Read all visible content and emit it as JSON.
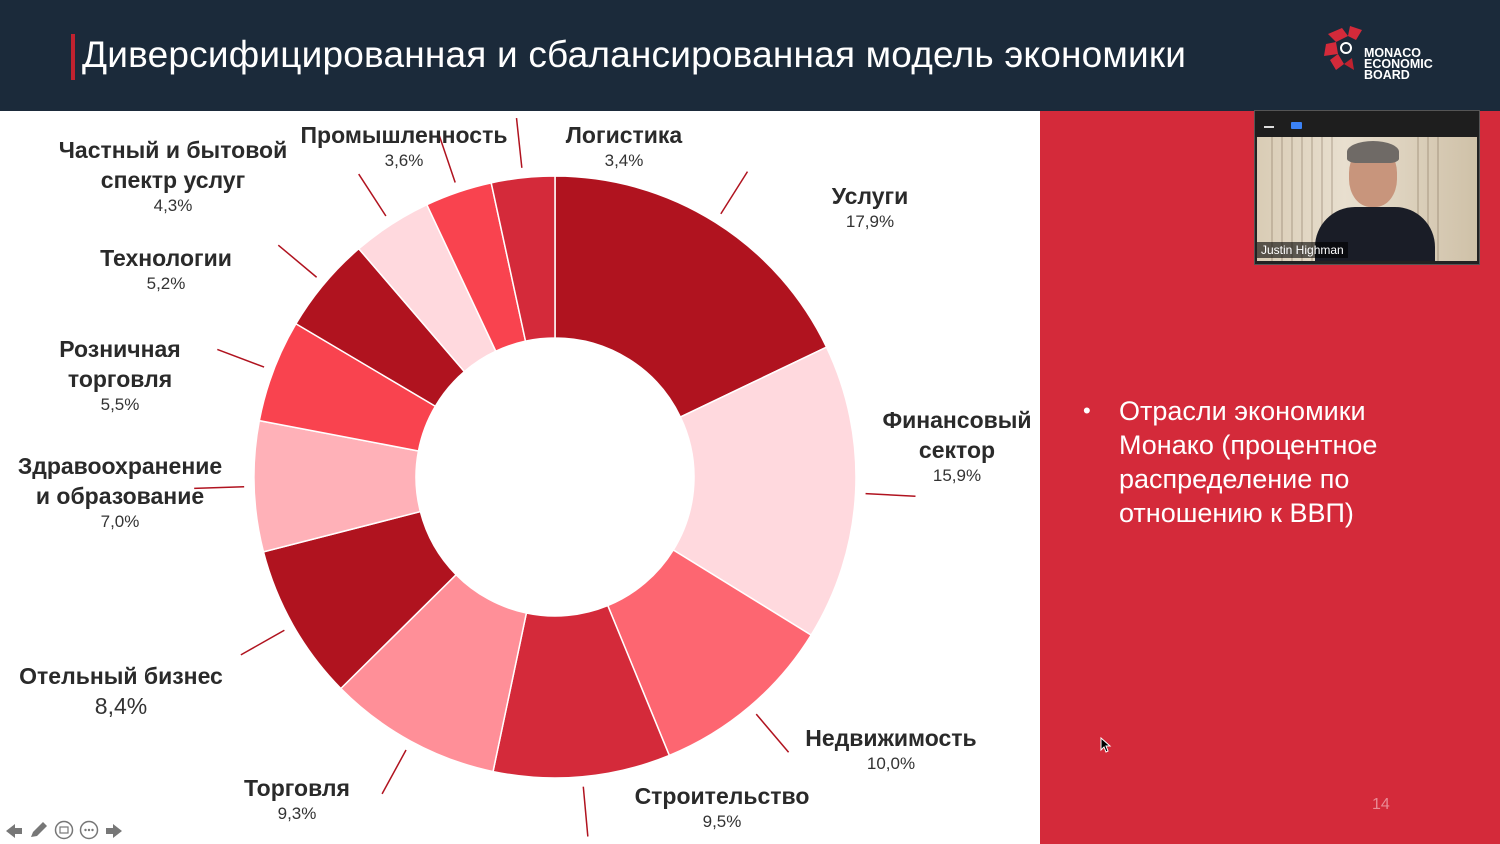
{
  "slide": {
    "title": "Диверсифицированная и сбалансированная модель экономики",
    "logo_text": [
      "MONACO",
      "ECONOMIC",
      "BOARD"
    ],
    "bullet": "Отрасли экономики Монако (процентное распределение по отношению к ВВП)",
    "page_number": "14"
  },
  "video": {
    "participant_name": "Justin Highman"
  },
  "colors": {
    "header_bg": "#1b2a3a",
    "accent_red": "#d42a3a",
    "dark_red": "#b0131f"
  },
  "chart_data": {
    "type": "pie",
    "donut": true,
    "slices": [
      {
        "name": "Услуги",
        "value": 17.9,
        "label": "17,9%",
        "color": "#b0131f"
      },
      {
        "name": "Финансовый сектор",
        "value": 15.9,
        "label": "15,9%",
        "color": "#ffd9de"
      },
      {
        "name": "Недвижимость",
        "value": 10.0,
        "label": "10,0%",
        "color": "#fd6671"
      },
      {
        "name": "Строительство",
        "value": 9.5,
        "label": "9,5%",
        "color": "#d42a3a"
      },
      {
        "name": "Торговля",
        "value": 9.3,
        "label": "9,3%",
        "color": "#ff8f98"
      },
      {
        "name": "Отельный бизнес",
        "value": 8.4,
        "label": "8,4%",
        "color": "#b0131f"
      },
      {
        "name": "Здравоохранение и образование",
        "value": 7.0,
        "label": "7,0%",
        "color": "#ffb1b8"
      },
      {
        "name": "Розничная торговля",
        "value": 5.5,
        "label": "5,5%",
        "color": "#f9434f"
      },
      {
        "name": "Технологии",
        "value": 5.2,
        "label": "5,2%",
        "color": "#b0131f"
      },
      {
        "name": "Частный и бытовой спектр услуг",
        "value": 4.3,
        "label": "4,3%",
        "color": "#ffd9de"
      },
      {
        "name": "Промышленность",
        "value": 3.6,
        "label": "3,6%",
        "color": "#f9434f"
      },
      {
        "name": "Логистика",
        "value": 3.4,
        "label": "3,4%",
        "color": "#d42a3a"
      }
    ],
    "labels": [
      {
        "lines": [
          "Услуги"
        ],
        "pct": "17,9%"
      },
      {
        "lines": [
          "Финансовый",
          "сектор"
        ],
        "pct": "15,9%"
      },
      {
        "lines": [
          "Недвижимость"
        ],
        "pct": "10,0%"
      },
      {
        "lines": [
          "Строительство"
        ],
        "pct": "9,5%"
      },
      {
        "lines": [
          "Торговля"
        ],
        "pct": "9,3%"
      },
      {
        "lines": [
          "Отельный бизнес"
        ],
        "pct": "8,4%"
      },
      {
        "lines": [
          "Здравоохранение",
          "и образование"
        ],
        "pct": "7,0%"
      },
      {
        "lines": [
          "Розничная",
          "торговля"
        ],
        "pct": "5,5%"
      },
      {
        "lines": [
          "Технологии"
        ],
        "pct": "5,2%"
      },
      {
        "lines": [
          "Частный и бытовой",
          "спектр услуг"
        ],
        "pct": "4,3%"
      },
      {
        "lines": [
          "Промышленность"
        ],
        "pct": "3,6%"
      },
      {
        "lines": [
          "Логистика"
        ],
        "pct": "3,4%"
      }
    ]
  }
}
